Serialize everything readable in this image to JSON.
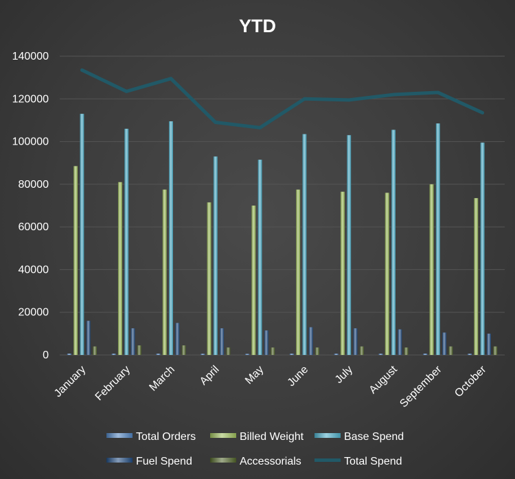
{
  "chart_data": {
    "type": "bar",
    "title": "YTD",
    "xlabel": "",
    "ylabel": "",
    "ylim": [
      0,
      140000
    ],
    "yticks": [
      0,
      20000,
      40000,
      60000,
      80000,
      100000,
      120000,
      140000
    ],
    "grid": true,
    "legend_placement": "bottom",
    "categories": [
      "January",
      "February",
      "March",
      "April",
      "May",
      "June",
      "July",
      "August",
      "September",
      "October"
    ],
    "series": [
      {
        "name": "Total Orders",
        "kind": "bar",
        "color": "#4f81bd",
        "values": [
          650,
          600,
          620,
          560,
          520,
          610,
          600,
          600,
          620,
          580
        ]
      },
      {
        "name": "Billed Weight",
        "kind": "bar",
        "color": "#9bbb59",
        "values": [
          88500,
          81000,
          77500,
          71500,
          70000,
          77500,
          76500,
          76000,
          80000,
          73500
        ]
      },
      {
        "name": "Base Spend",
        "kind": "bar",
        "color": "#4bacc6",
        "values": [
          113000,
          106000,
          109500,
          93000,
          91500,
          103500,
          103000,
          105500,
          108500,
          99500
        ]
      },
      {
        "name": "Fuel Spend",
        "kind": "bar",
        "color": "#1f497d",
        "values": [
          16000,
          12500,
          15000,
          12500,
          11500,
          13000,
          12500,
          12000,
          10500,
          10000
        ]
      },
      {
        "name": "Accessorials",
        "kind": "bar",
        "color": "#4f6228",
        "values": [
          4000,
          4500,
          4500,
          3500,
          3500,
          3500,
          4000,
          3500,
          4000,
          4000
        ]
      },
      {
        "name": "Total Spend",
        "kind": "line",
        "color": "#215967",
        "values": [
          133500,
          123500,
          129500,
          109000,
          106500,
          120000,
          119500,
          122000,
          123000,
          113500
        ]
      }
    ]
  }
}
